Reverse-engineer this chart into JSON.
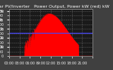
{
  "title": "Solar PV/Inverter   Power Output, Power kW (red) kW",
  "bg_color": "#404040",
  "plot_bg_color": "#1a1a1a",
  "grid_color": "#808080",
  "fill_color": "#ff0000",
  "line_color": "#ff0000",
  "hline_color": "#4444ff",
  "hline_y": 2600,
  "ylim": [
    0,
    5200
  ],
  "xlim": [
    0,
    287
  ],
  "num_points": 288,
  "peak_index": 138,
  "peak_value": 4700,
  "x_ticks_labels": [
    "00:00",
    "03:00",
    "06:00",
    "09:00",
    "12:00",
    "15:00",
    "18:00",
    "21:00",
    ""
  ],
  "ytick_vals": [
    0,
    500,
    1000,
    1500,
    2000,
    2500,
    3000,
    3500,
    4000,
    4500,
    5000
  ],
  "title_fontsize": 4.5,
  "tick_fontsize": 3.5,
  "left_labels": [
    "5k",
    "4k",
    "3k",
    "2k",
    "1k"
  ],
  "left_tick_vals": [
    5000,
    4000,
    3000,
    2000,
    1000
  ]
}
